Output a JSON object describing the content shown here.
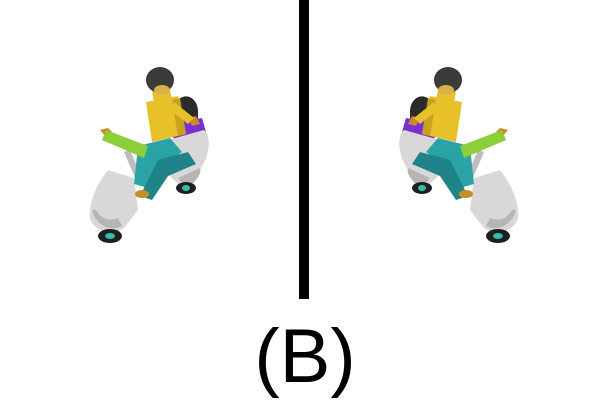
{
  "caption": "(B)",
  "figures": [
    {
      "name": "left-render",
      "orientation": "original"
    },
    {
      "name": "right-render",
      "orientation": "mirrored"
    }
  ],
  "colors": {
    "divider": "#000000",
    "head": "#3b3b3b",
    "torso": "#e8c12a",
    "torso_shade": "#c9a11c",
    "arm_left": "#8ccf3a",
    "legs": "#2aa3a6",
    "legs_shade": "#1e8487",
    "scooter_body": "#d8d8d8",
    "scooter_shade": "#b5b5b5",
    "seat": "#7a2fd0",
    "tail_object": "#2b2b2b",
    "wheel": "#1f1f1f",
    "wheel_hub": "#2fc0b0",
    "handle": "#c98a2a"
  }
}
